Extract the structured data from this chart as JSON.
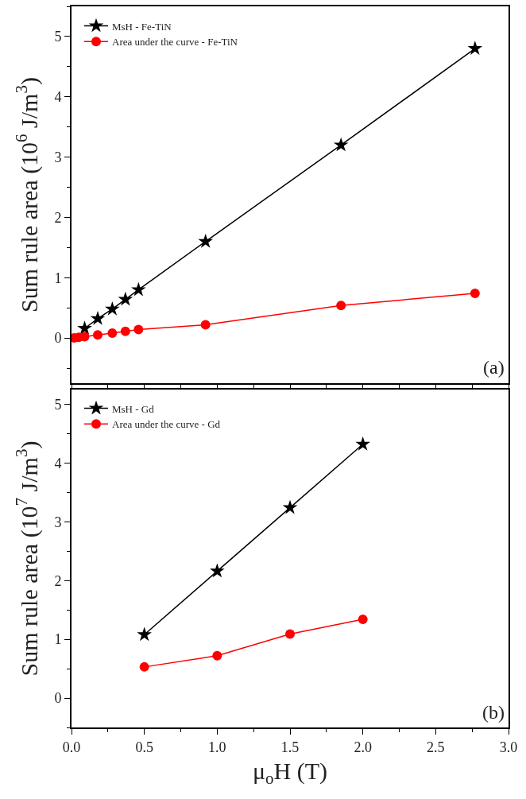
{
  "chart_data": [
    {
      "type": "line",
      "ylabel": "Sum rule area (10$^{6}$ J/m$^{3}$)",
      "annotations": [
        "(a)"
      ],
      "xlim": [
        0,
        3
      ],
      "xticks": [
        0,
        0.5,
        1,
        1.5,
        2,
        2.5,
        3
      ],
      "ylim": [
        -0.75,
        5.5
      ],
      "yticks": [
        0,
        1,
        2,
        3,
        4,
        5
      ],
      "tick_labels": "y",
      "legend": "top left",
      "grid": false,
      "series": [
        {
          "name": "MsH - Fe-TiN",
          "color": "#000000",
          "marker": "star",
          "x": [
            0.09,
            0.18,
            0.28,
            0.37,
            0.46,
            0.92,
            1.85,
            2.77
          ],
          "values": [
            0.16,
            0.32,
            0.48,
            0.64,
            0.8,
            1.6,
            3.2,
            4.8
          ]
        },
        {
          "name": "Area under the curve - Fe-TiN",
          "color": "#ff0000",
          "marker": "circle",
          "x": [
            0.02,
            0.05,
            0.09,
            0.18,
            0.28,
            0.37,
            0.46,
            0.92,
            1.85,
            2.77
          ],
          "values": [
            0,
            0.01,
            0.02,
            0.05,
            0.08,
            0.11,
            0.14,
            0.22,
            0.54,
            0.74
          ]
        }
      ]
    },
    {
      "type": "line",
      "xlabel": "μ$_{o}$H (T)",
      "ylabel": "Sum rule area (10$^{7}$ J/m$^{3}$)",
      "annotations": [
        "(b)"
      ],
      "xlim": [
        0,
        3
      ],
      "xticks": [
        {
          "value": 0,
          "label": "0.0"
        },
        {
          "value": 0.5,
          "label": "0.5"
        },
        {
          "value": 1,
          "label": "1.0"
        },
        {
          "value": 1.5,
          "label": "1.5"
        },
        {
          "value": 2,
          "label": "2.0"
        },
        {
          "value": 2.5,
          "label": "2.5"
        },
        {
          "value": 3,
          "label": "3.0"
        }
      ],
      "ylim": [
        -0.5,
        5.25
      ],
      "yticks": [
        0,
        1,
        2,
        3,
        4,
        5
      ],
      "legend": "top left",
      "grid": false,
      "series": [
        {
          "name": "MsH - Gd",
          "color": "#000000",
          "marker": "star",
          "x": [
            0.5,
            1,
            1.5,
            2
          ],
          "values": [
            1.08,
            2.16,
            3.24,
            4.32
          ]
        },
        {
          "name": "Area under the curve - Gd",
          "color": "#ff0000",
          "marker": "circle",
          "x": [
            0.5,
            1,
            1.5,
            2
          ],
          "values": [
            0.53,
            0.72,
            1.09,
            1.34
          ]
        }
      ]
    }
  ]
}
